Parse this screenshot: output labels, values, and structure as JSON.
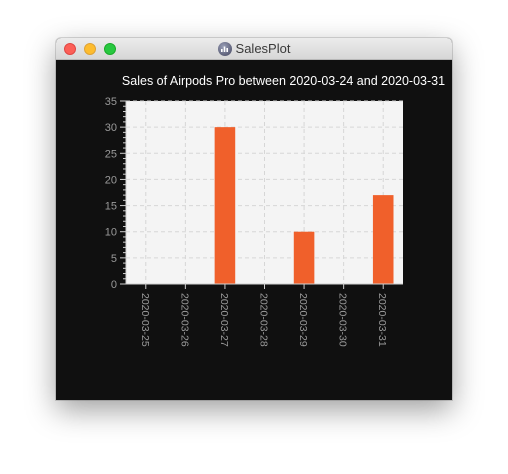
{
  "window": {
    "title": "SalesPlot",
    "app_icon": "salesplot-app-icon",
    "controls": [
      "close-button",
      "minimize-button",
      "zoom-button"
    ]
  },
  "colors": {
    "bar": "#f0602b",
    "plot_background": "#f4f4f4",
    "window_background": "#101010",
    "grid": "#d6d6d6",
    "text": "#ffffff",
    "tick_text": "#9a9a9a"
  },
  "chart_data": {
    "type": "bar",
    "title": "Sales of Airpods Pro between 2020-03-24 and 2020-03-31",
    "categories": [
      "2020-03-25",
      "2020-03-26",
      "2020-03-27",
      "2020-03-28",
      "2020-03-29",
      "2020-03-30",
      "2020-03-31"
    ],
    "values": [
      0,
      0,
      30,
      0,
      10,
      0,
      17
    ],
    "xlabel": "",
    "ylabel": "",
    "ylim": [
      0,
      35
    ],
    "yticks": [
      0,
      5,
      10,
      15,
      20,
      25,
      30,
      35
    ],
    "grid": true,
    "legend": "none"
  }
}
